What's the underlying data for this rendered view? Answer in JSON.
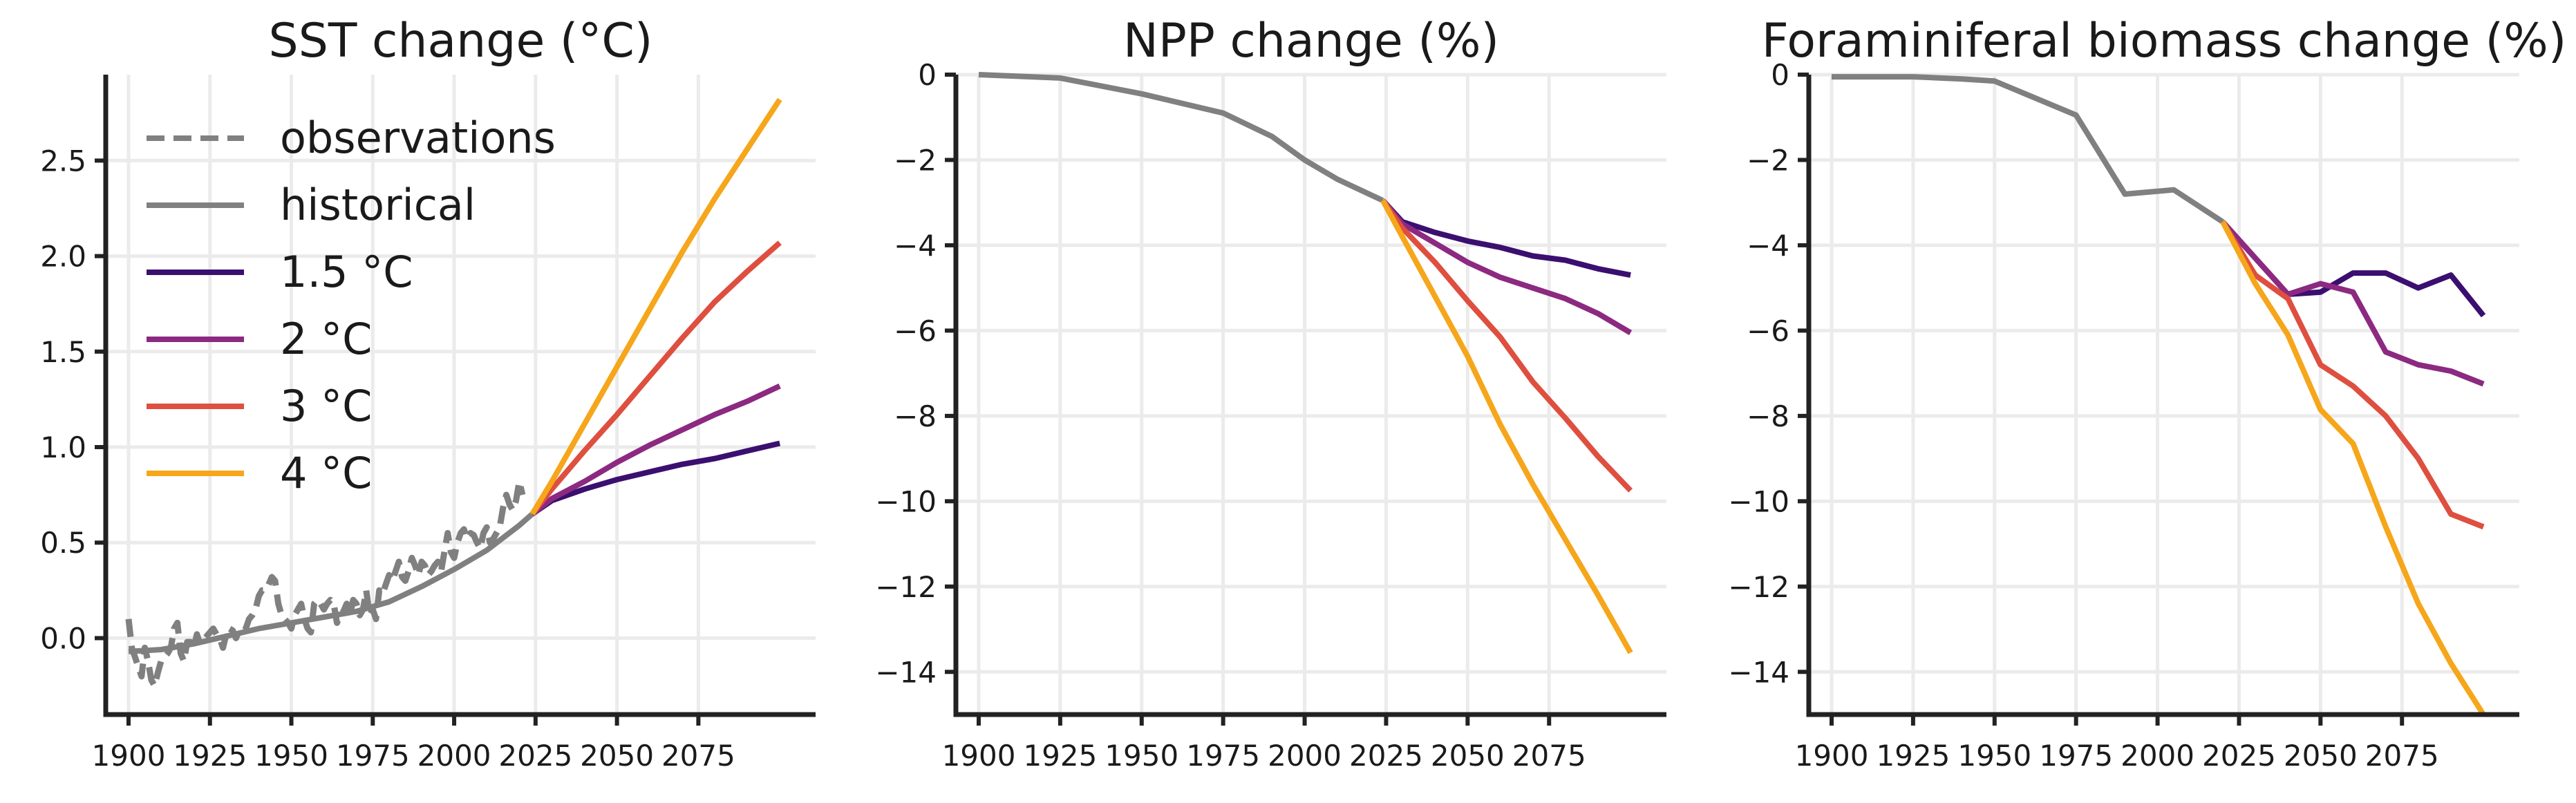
{
  "chart_data": [
    {
      "type": "line",
      "title": "SST change (°C)",
      "xlabel": "",
      "ylabel": "",
      "xlim": [
        1893,
        2111
      ],
      "ylim": [
        -0.4,
        2.95
      ],
      "xticks": [
        1900,
        1925,
        1950,
        1975,
        2000,
        2025,
        2050,
        2075
      ],
      "xtick_labels": [
        "1900",
        "1925",
        "1950",
        "1975",
        "2000",
        "2025",
        "2050",
        "2075"
      ],
      "yticks": [
        0.0,
        0.5,
        1.0,
        1.5,
        2.0,
        2.5
      ],
      "ytick_labels": [
        "0.0",
        "0.5",
        "1.0",
        "1.5",
        "2.0",
        "2.5"
      ],
      "grid": true,
      "legend_position": "top-left",
      "legend": [
        {
          "label": "observations",
          "color": "#808080",
          "dashed": true
        },
        {
          "label": "historical",
          "color": "#808080",
          "dashed": false
        },
        {
          "label": "1.5 °C",
          "color": "#3b0f70",
          "dashed": false
        },
        {
          "label": "2 °C",
          "color": "#8c2981",
          "dashed": false
        },
        {
          "label": "3 °C",
          "color": "#de4f3f",
          "dashed": false
        },
        {
          "label": "4 °C",
          "color": "#f6a61a",
          "dashed": false
        }
      ],
      "series": [
        {
          "name": "observations",
          "color": "#808080",
          "dashed": true,
          "x": [
            1900,
            1901,
            1902,
            1903,
            1904,
            1905,
            1906,
            1907,
            1908,
            1909,
            1910,
            1911,
            1912,
            1913,
            1914,
            1915,
            1916,
            1917,
            1918,
            1919,
            1920,
            1921,
            1922,
            1923,
            1924,
            1925,
            1926,
            1927,
            1928,
            1929,
            1930,
            1931,
            1932,
            1933,
            1934,
            1935,
            1936,
            1937,
            1938,
            1939,
            1940,
            1941,
            1942,
            1943,
            1944,
            1945,
            1946,
            1947,
            1948,
            1949,
            1950,
            1951,
            1952,
            1953,
            1954,
            1955,
            1956,
            1957,
            1958,
            1959,
            1960,
            1961,
            1962,
            1963,
            1964,
            1965,
            1966,
            1967,
            1968,
            1969,
            1970,
            1971,
            1972,
            1973,
            1974,
            1975,
            1976,
            1977,
            1978,
            1979,
            1980,
            1981,
            1982,
            1983,
            1984,
            1985,
            1986,
            1987,
            1988,
            1989,
            1990,
            1991,
            1992,
            1993,
            1994,
            1995,
            1996,
            1997,
            1998,
            1999,
            2000,
            2001,
            2002,
            2003,
            2004,
            2005,
            2006,
            2007,
            2008,
            2009,
            2010,
            2011,
            2012,
            2013,
            2014,
            2015,
            2016,
            2017,
            2018,
            2019,
            2020,
            2021
          ],
          "y": [
            0.1,
            -0.05,
            -0.1,
            -0.15,
            -0.2,
            -0.05,
            -0.12,
            -0.22,
            -0.25,
            -0.18,
            -0.12,
            -0.1,
            -0.08,
            -0.05,
            0.05,
            0.08,
            -0.08,
            -0.12,
            -0.02,
            -0.02,
            -0.05,
            0.02,
            -0.03,
            -0.01,
            0.01,
            0.03,
            0.05,
            0.02,
            0.0,
            -0.05,
            0.02,
            0.05,
            0.04,
            0.0,
            0.04,
            0.03,
            0.05,
            0.1,
            0.12,
            0.15,
            0.22,
            0.25,
            0.25,
            0.28,
            0.32,
            0.3,
            0.18,
            0.12,
            0.1,
            0.08,
            0.05,
            0.12,
            0.15,
            0.18,
            0.1,
            0.05,
            0.03,
            0.18,
            0.2,
            0.18,
            0.15,
            0.18,
            0.2,
            0.18,
            0.08,
            0.12,
            0.14,
            0.18,
            0.12,
            0.2,
            0.18,
            0.12,
            0.15,
            0.25,
            0.12,
            0.15,
            0.1,
            0.25,
            0.23,
            0.28,
            0.33,
            0.3,
            0.35,
            0.4,
            0.32,
            0.3,
            0.35,
            0.42,
            0.38,
            0.33,
            0.4,
            0.38,
            0.33,
            0.35,
            0.38,
            0.4,
            0.35,
            0.45,
            0.55,
            0.45,
            0.42,
            0.5,
            0.55,
            0.57,
            0.52,
            0.55,
            0.54,
            0.5,
            0.47,
            0.55,
            0.58,
            0.5,
            0.52,
            0.55,
            0.58,
            0.68,
            0.75,
            0.7,
            0.67,
            0.72,
            0.82,
            0.75
          ]
        },
        {
          "name": "historical",
          "color": "#808080",
          "dashed": false,
          "x": [
            1900,
            1910,
            1920,
            1930,
            1940,
            1950,
            1960,
            1970,
            1980,
            1990,
            2000,
            2010,
            2020,
            2024
          ],
          "y": [
            -0.07,
            -0.06,
            -0.03,
            0.01,
            0.05,
            0.08,
            0.11,
            0.14,
            0.19,
            0.27,
            0.36,
            0.46,
            0.59,
            0.65
          ]
        },
        {
          "name": "1.5 °C",
          "color": "#3b0f70",
          "dashed": false,
          "x": [
            2024,
            2030,
            2040,
            2050,
            2060,
            2070,
            2080,
            2090,
            2100
          ],
          "y": [
            0.65,
            0.72,
            0.78,
            0.83,
            0.87,
            0.91,
            0.94,
            0.98,
            1.02
          ]
        },
        {
          "name": "2 °C",
          "color": "#8c2981",
          "dashed": false,
          "x": [
            2024,
            2030,
            2040,
            2050,
            2060,
            2070,
            2080,
            2090,
            2100
          ],
          "y": [
            0.65,
            0.73,
            0.82,
            0.92,
            1.01,
            1.09,
            1.17,
            1.24,
            1.32
          ]
        },
        {
          "name": "3 °C",
          "color": "#de4f3f",
          "dashed": false,
          "x": [
            2024,
            2030,
            2040,
            2050,
            2060,
            2070,
            2080,
            2090,
            2100
          ],
          "y": [
            0.65,
            0.78,
            0.98,
            1.17,
            1.37,
            1.57,
            1.76,
            1.92,
            2.07
          ]
        },
        {
          "name": "4 °C",
          "color": "#f6a61a",
          "dashed": false,
          "x": [
            2024,
            2030,
            2040,
            2050,
            2060,
            2070,
            2080,
            2090,
            2100
          ],
          "y": [
            0.65,
            0.82,
            1.12,
            1.42,
            1.72,
            2.02,
            2.3,
            2.56,
            2.82
          ]
        }
      ]
    },
    {
      "type": "line",
      "title": "NPP change (%)",
      "xlabel": "",
      "ylabel": "",
      "xlim": [
        1893,
        2111
      ],
      "ylim": [
        -15,
        0
      ],
      "xticks": [
        1900,
        1925,
        1950,
        1975,
        2000,
        2025,
        2050,
        2075
      ],
      "xtick_labels": [
        "1900",
        "1925",
        "1950",
        "1975",
        "2000",
        "2025",
        "2050",
        "2075"
      ],
      "yticks": [
        0,
        -2,
        -4,
        -6,
        -8,
        -10,
        -12,
        -14
      ],
      "ytick_labels": [
        "0",
        "−2",
        "−4",
        "−6",
        "−8",
        "−10",
        "−12",
        "−14"
      ],
      "grid": true,
      "series": [
        {
          "name": "historical",
          "color": "#808080",
          "dashed": false,
          "x": [
            1900,
            1925,
            1950,
            1975,
            1990,
            2000,
            2010,
            2024
          ],
          "y": [
            0.0,
            -0.08,
            -0.45,
            -0.9,
            -1.45,
            -2.0,
            -2.45,
            -2.95
          ]
        },
        {
          "name": "1.5 °C",
          "color": "#3b0f70",
          "dashed": false,
          "x": [
            2024,
            2030,
            2040,
            2050,
            2060,
            2070,
            2080,
            2090,
            2100
          ],
          "y": [
            -2.95,
            -3.45,
            -3.7,
            -3.9,
            -4.05,
            -4.25,
            -4.35,
            -4.55,
            -4.7
          ]
        },
        {
          "name": "2 °C",
          "color": "#8c2981",
          "dashed": false,
          "x": [
            2024,
            2030,
            2040,
            2050,
            2060,
            2070,
            2080,
            2090,
            2100
          ],
          "y": [
            -2.95,
            -3.5,
            -3.95,
            -4.4,
            -4.75,
            -5.0,
            -5.25,
            -5.6,
            -6.05
          ]
        },
        {
          "name": "3 °C",
          "color": "#de4f3f",
          "dashed": false,
          "x": [
            2024,
            2030,
            2040,
            2050,
            2060,
            2070,
            2080,
            2090,
            2100
          ],
          "y": [
            -2.95,
            -3.6,
            -4.4,
            -5.3,
            -6.15,
            -7.2,
            -8.05,
            -8.95,
            -9.75
          ]
        },
        {
          "name": "4 °C",
          "color": "#f6a61a",
          "dashed": false,
          "x": [
            2024,
            2030,
            2040,
            2050,
            2060,
            2070,
            2080,
            2090,
            2100
          ],
          "y": [
            -2.95,
            -3.8,
            -5.2,
            -6.6,
            -8.2,
            -9.6,
            -10.9,
            -12.2,
            -13.55
          ]
        }
      ]
    },
    {
      "type": "line",
      "title": "Foraminiferal biomass change (%)",
      "xlabel": "",
      "ylabel": "",
      "xlim": [
        1893,
        2111
      ],
      "ylim": [
        -15,
        0
      ],
      "xticks": [
        1900,
        1925,
        1950,
        1975,
        2000,
        2025,
        2050,
        2075
      ],
      "xtick_labels": [
        "1900",
        "1925",
        "1950",
        "1975",
        "2000",
        "2025",
        "2050",
        "2075"
      ],
      "yticks": [
        0,
        -2,
        -4,
        -6,
        -8,
        -10,
        -12,
        -14
      ],
      "ytick_labels": [
        "0",
        "−2",
        "−4",
        "−6",
        "−8",
        "−10",
        "−12",
        "−14"
      ],
      "grid": true,
      "series": [
        {
          "name": "historical",
          "color": "#808080",
          "dashed": false,
          "x": [
            1900,
            1925,
            1940,
            1950,
            1975,
            1990,
            2005,
            2020
          ],
          "y": [
            -0.05,
            -0.05,
            -0.1,
            -0.15,
            -0.95,
            -2.8,
            -2.7,
            -3.45
          ]
        },
        {
          "name": "1.5 °C",
          "color": "#3b0f70",
          "dashed": false,
          "x": [
            2020,
            2030,
            2040,
            2050,
            2060,
            2070,
            2080,
            2090,
            2100
          ],
          "y": [
            -3.45,
            -4.3,
            -5.15,
            -5.1,
            -4.65,
            -4.65,
            -5.0,
            -4.7,
            -5.65
          ]
        },
        {
          "name": "2 °C",
          "color": "#8c2981",
          "dashed": false,
          "x": [
            2020,
            2030,
            2040,
            2050,
            2060,
            2070,
            2080,
            2090,
            2100
          ],
          "y": [
            -3.45,
            -4.3,
            -5.15,
            -4.9,
            -5.1,
            -6.5,
            -6.8,
            -6.95,
            -7.25
          ]
        },
        {
          "name": "3 °C",
          "color": "#de4f3f",
          "dashed": false,
          "x": [
            2020,
            2030,
            2040,
            2050,
            2060,
            2070,
            2080,
            2090,
            2100
          ],
          "y": [
            -3.45,
            -4.7,
            -5.25,
            -6.8,
            -7.3,
            -8.0,
            -9.0,
            -10.3,
            -10.6
          ]
        },
        {
          "name": "4 °C",
          "color": "#f6a61a",
          "dashed": false,
          "x": [
            2020,
            2030,
            2040,
            2050,
            2060,
            2070,
            2080,
            2090,
            2100
          ],
          "y": [
            -3.45,
            -4.9,
            -6.1,
            -7.85,
            -8.65,
            -10.6,
            -12.4,
            -13.8,
            -15.0
          ]
        }
      ]
    }
  ]
}
